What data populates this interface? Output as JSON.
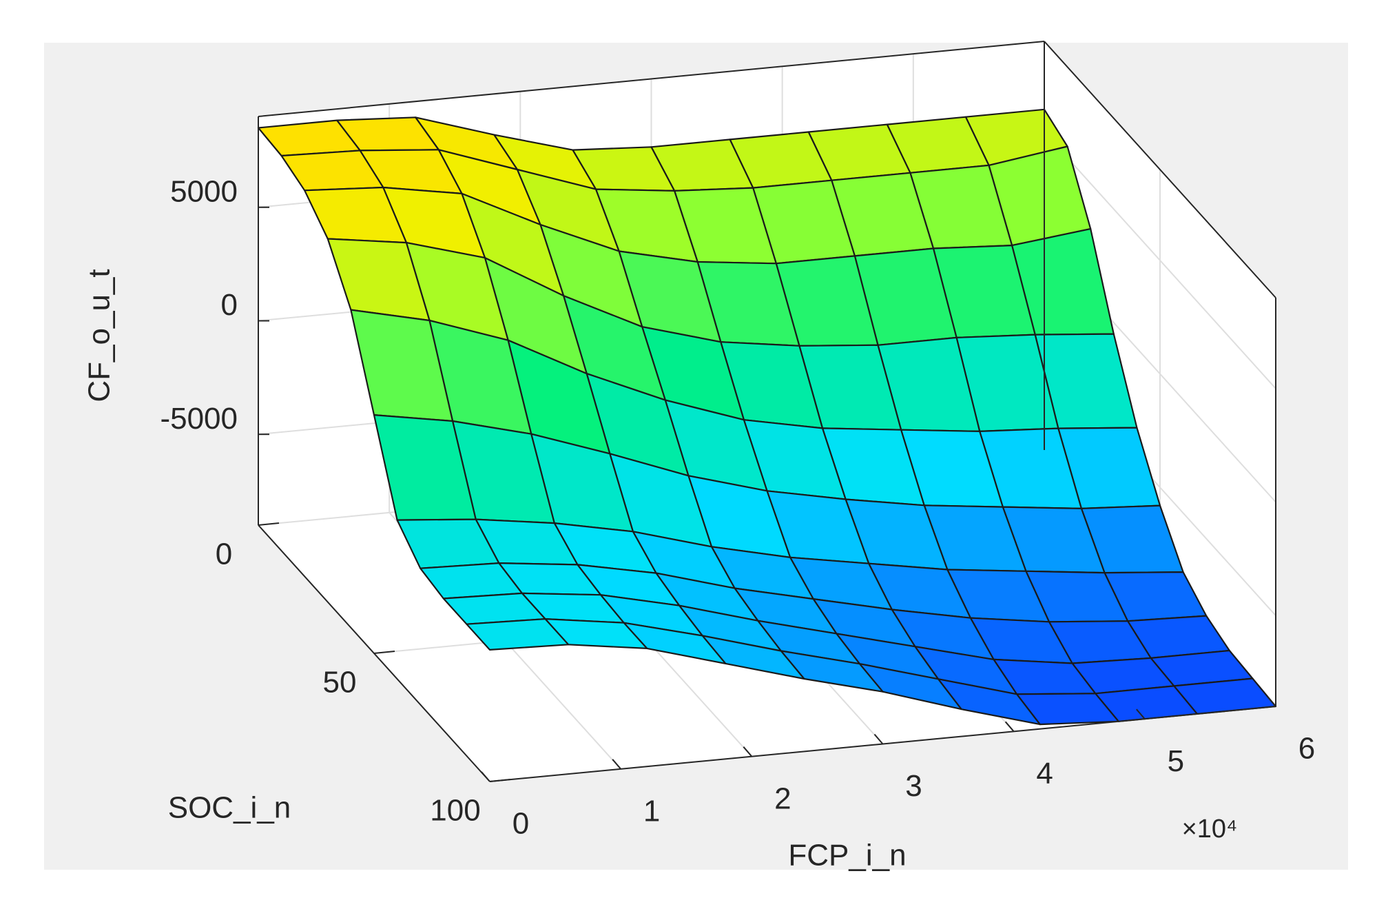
{
  "chart_data": {
    "type": "surface",
    "x_label": "FCP_i_n",
    "y_label": "SOC_i_n",
    "z_label": "CF_o_u_t",
    "x_exponent_label": "×10⁴",
    "x": [
      0,
      6000,
      12000,
      18000,
      24000,
      30000,
      36000,
      42000,
      48000,
      54000,
      60000
    ],
    "y": [
      0,
      10,
      20,
      30,
      40,
      50,
      60,
      70,
      80,
      90,
      100
    ],
    "z": [
      [
        8500,
        8500,
        8300,
        7200,
        6200,
        6000,
        6000,
        6000,
        6000,
        6000,
        6000
      ],
      [
        8400,
        8300,
        8000,
        6800,
        5600,
        5200,
        5000,
        5000,
        5000,
        5000,
        5500
      ],
      [
        8000,
        7800,
        7200,
        5500,
        4000,
        3200,
        2800,
        2800,
        2800,
        2600,
        3000
      ],
      [
        7000,
        6500,
        5500,
        3500,
        1800,
        800,
        300,
        0,
        0,
        -200,
        -500
      ],
      [
        5000,
        4200,
        3000,
        1200,
        -300,
        -1500,
        -2200,
        -2600,
        -3000,
        -3200,
        -3500
      ],
      [
        1500,
        900,
        0,
        -1200,
        -2500,
        -3500,
        -4200,
        -4800,
        -5200,
        -5600,
        -5800
      ],
      [
        -2000,
        -2300,
        -2800,
        -3500,
        -4500,
        -5300,
        -5900,
        -6500,
        -6900,
        -7300,
        -7600
      ],
      [
        -3000,
        -3100,
        -3500,
        -4200,
        -5200,
        -6000,
        -6800,
        -7500,
        -8000,
        -8300,
        -8400
      ],
      [
        -3200,
        -3300,
        -3700,
        -4500,
        -5500,
        -6400,
        -7300,
        -8200,
        -8700,
        -8800,
        -8800
      ],
      [
        -3200,
        -3300,
        -3800,
        -4700,
        -5700,
        -6600,
        -7600,
        -8600,
        -8900,
        -8900,
        -8900
      ],
      [
        -3200,
        -3300,
        -3800,
        -4800,
        -5800,
        -6700,
        -7800,
        -8800,
        -9000,
        -9000,
        -9000
      ]
    ],
    "xlim": [
      0,
      60000
    ],
    "xticks": [
      {
        "value": 0,
        "label": "0"
      },
      {
        "value": 10000,
        "label": "1"
      },
      {
        "value": 20000,
        "label": "2"
      },
      {
        "value": 30000,
        "label": "3"
      },
      {
        "value": 40000,
        "label": "4"
      },
      {
        "value": 50000,
        "label": "5"
      },
      {
        "value": 60000,
        "label": "6"
      }
    ],
    "ylim": [
      0,
      100
    ],
    "yticks": [
      0,
      50,
      100
    ],
    "zlim": [
      -9000,
      9000
    ],
    "zticks": [
      -5000,
      0,
      5000
    ],
    "grid": true
  }
}
